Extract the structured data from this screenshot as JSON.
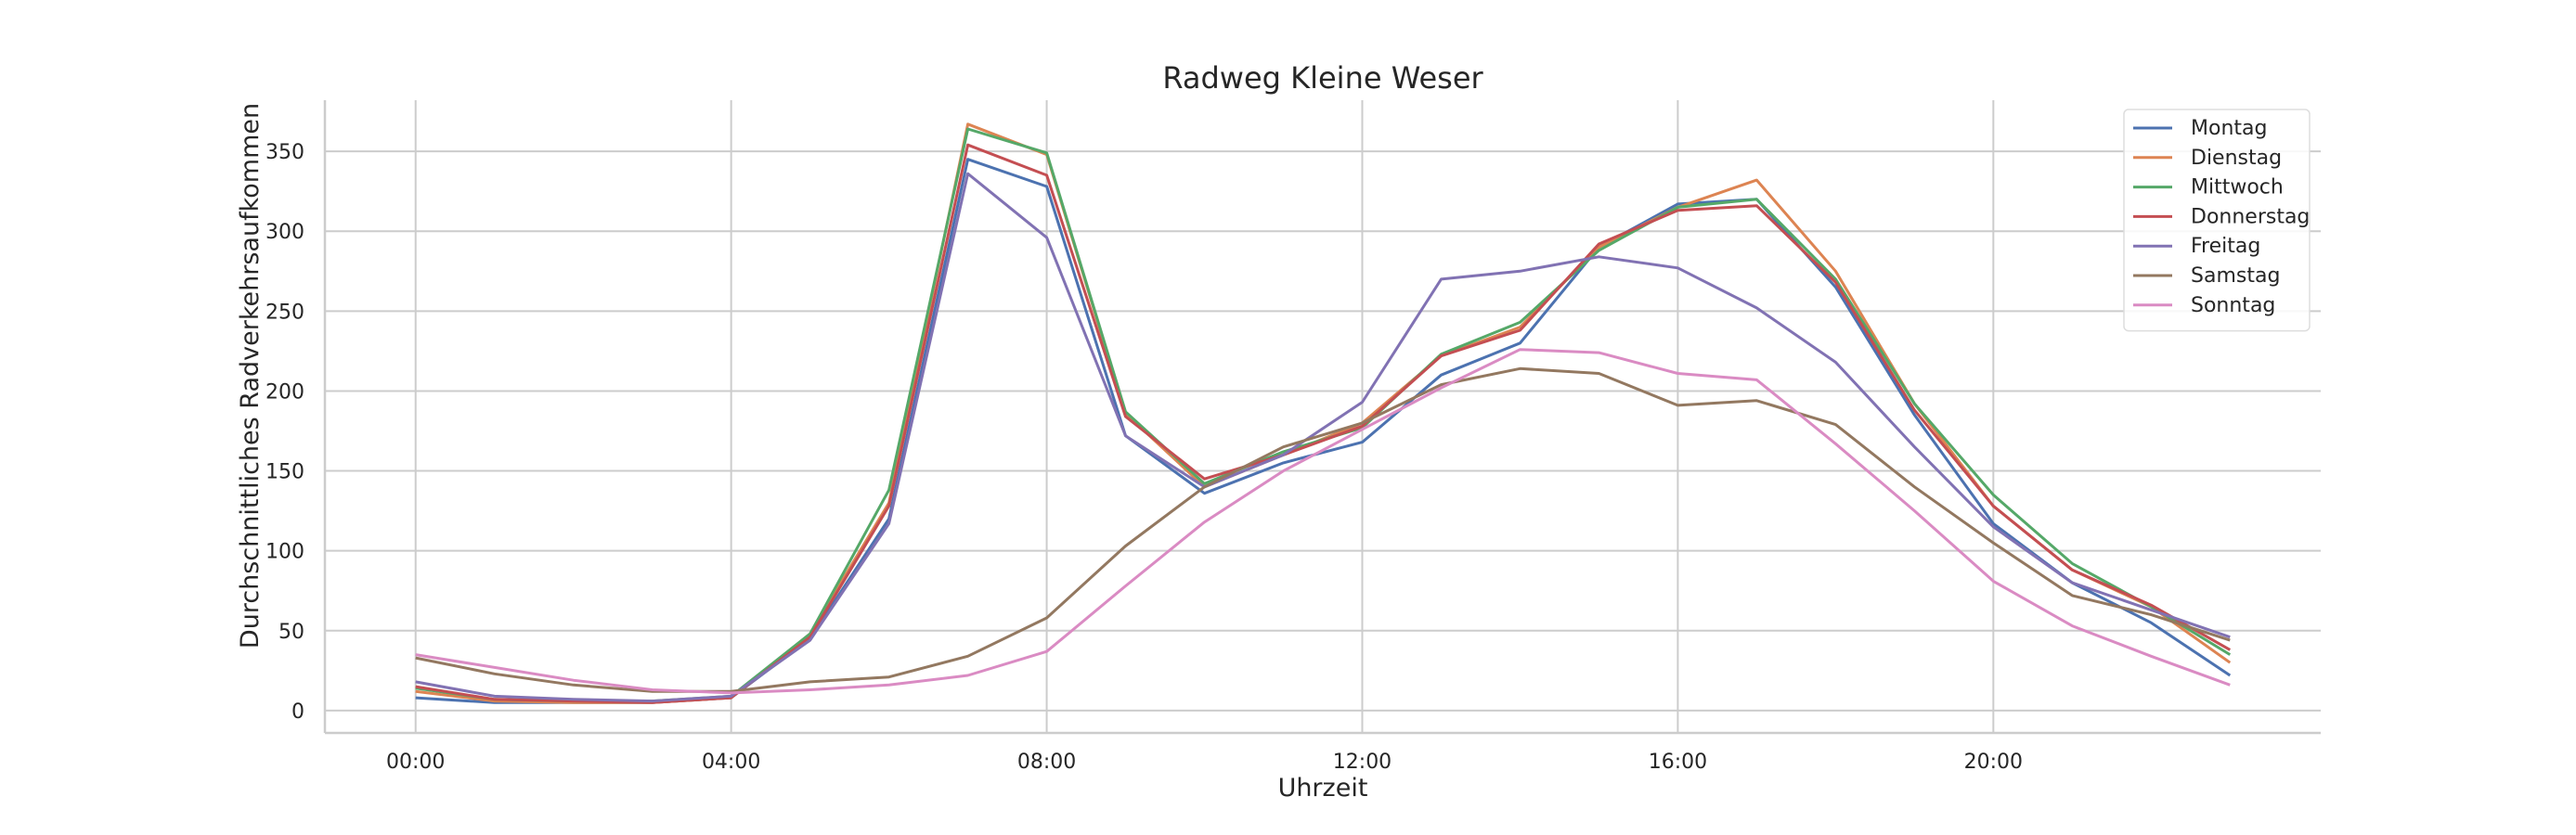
{
  "chart_data": {
    "type": "line",
    "title": "Radweg Kleine Weser",
    "xlabel": "Uhrzeit",
    "ylabel": "Durchschnittliches Radverkehrsaufkommen",
    "x": [
      0,
      1,
      2,
      3,
      4,
      5,
      6,
      7,
      8,
      9,
      10,
      11,
      12,
      13,
      14,
      15,
      16,
      17,
      18,
      19,
      20,
      21,
      22,
      23
    ],
    "xticks": [
      0,
      4,
      8,
      12,
      16,
      20
    ],
    "xtick_labels": [
      "00:00",
      "04:00",
      "08:00",
      "12:00",
      "16:00",
      "20:00"
    ],
    "xlim": [
      -1.15,
      24.15
    ],
    "ylim": [
      -14,
      382
    ],
    "yticks": [
      0,
      50,
      100,
      150,
      200,
      250,
      300,
      350
    ],
    "ytick_labels": [
      "0",
      "50",
      "100",
      "150",
      "200",
      "250",
      "300",
      "350"
    ],
    "grid": true,
    "legend_position": "top-right",
    "series": [
      {
        "name": "Montag",
        "color": "#4c72b0",
        "values": [
          8,
          5,
          5,
          5,
          8,
          45,
          120,
          345,
          328,
          172,
          136,
          155,
          168,
          210,
          230,
          290,
          317,
          320,
          265,
          185,
          117,
          80,
          55,
          22
        ]
      },
      {
        "name": "Dienstag",
        "color": "#dd8452",
        "values": [
          12,
          6,
          5,
          5,
          8,
          48,
          130,
          367,
          348,
          186,
          140,
          160,
          180,
          222,
          240,
          290,
          315,
          332,
          275,
          192,
          128,
          88,
          65,
          30
        ]
      },
      {
        "name": "Mittwoch",
        "color": "#55a868",
        "values": [
          14,
          7,
          6,
          6,
          9,
          48,
          138,
          364,
          349,
          187,
          142,
          162,
          177,
          223,
          243,
          288,
          315,
          320,
          270,
          192,
          135,
          92,
          65,
          35
        ]
      },
      {
        "name": "Donnerstag",
        "color": "#c44e52",
        "values": [
          15,
          7,
          6,
          5,
          8,
          46,
          128,
          354,
          335,
          184,
          145,
          160,
          178,
          222,
          238,
          292,
          313,
          316,
          268,
          188,
          128,
          88,
          66,
          38
        ]
      },
      {
        "name": "Freitag",
        "color": "#8172b3",
        "values": [
          18,
          9,
          7,
          6,
          9,
          44,
          117,
          336,
          296,
          172,
          140,
          160,
          193,
          270,
          275,
          284,
          277,
          252,
          218,
          165,
          115,
          80,
          63,
          46
        ]
      },
      {
        "name": "Samstag",
        "color": "#937860",
        "values": [
          33,
          23,
          16,
          12,
          12,
          18,
          21,
          34,
          58,
          103,
          140,
          165,
          180,
          204,
          214,
          211,
          191,
          194,
          179,
          140,
          105,
          72,
          60,
          44
        ]
      },
      {
        "name": "Sonntag",
        "color": "#da8bc3",
        "values": [
          35,
          27,
          19,
          13,
          11,
          13,
          16,
          22,
          37,
          78,
          118,
          150,
          176,
          202,
          226,
          224,
          211,
          207,
          167,
          125,
          81,
          53,
          34,
          16
        ]
      }
    ]
  }
}
